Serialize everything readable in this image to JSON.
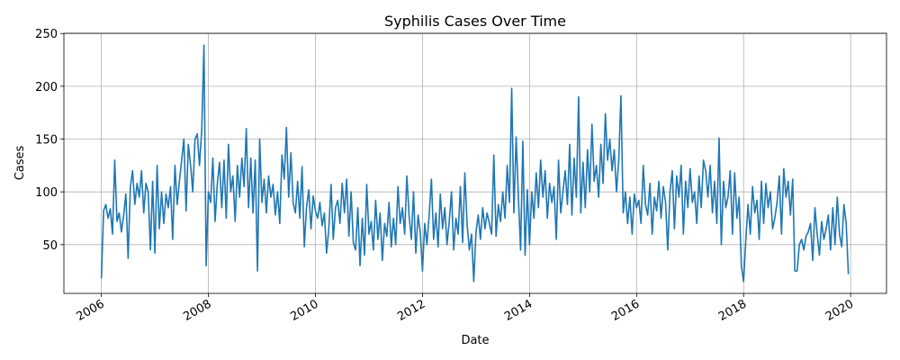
{
  "chart_data": {
    "type": "line",
    "title": "Syphilis Cases Over Time",
    "xlabel": "Date",
    "ylabel": "Cases",
    "xlim": [
      2005.3,
      2020.67
    ],
    "xticks": [
      2006,
      2008,
      2010,
      2012,
      2014,
      2016,
      2018,
      2020
    ],
    "ylim": [
      3.8,
      250.2
    ],
    "yticks": [
      50,
      100,
      150,
      200,
      250
    ],
    "grid": true,
    "x": [
      2006.0,
      2006.042,
      2006.083,
      2006.125,
      2006.167,
      2006.208,
      2006.25,
      2006.292,
      2006.333,
      2006.375,
      2006.417,
      2006.458,
      2006.5,
      2006.542,
      2006.583,
      2006.625,
      2006.667,
      2006.708,
      2006.75,
      2006.792,
      2006.833,
      2006.875,
      2006.917,
      2006.958,
      2007.0,
      2007.042,
      2007.083,
      2007.125,
      2007.167,
      2007.208,
      2007.25,
      2007.292,
      2007.333,
      2007.375,
      2007.417,
      2007.458,
      2007.5,
      2007.542,
      2007.583,
      2007.625,
      2007.667,
      2007.708,
      2007.75,
      2007.792,
      2007.833,
      2007.875,
      2007.917,
      2007.958,
      2008.0,
      2008.042,
      2008.083,
      2008.125,
      2008.167,
      2008.208,
      2008.25,
      2008.292,
      2008.333,
      2008.375,
      2008.417,
      2008.458,
      2008.5,
      2008.542,
      2008.583,
      2008.625,
      2008.667,
      2008.708,
      2008.75,
      2008.792,
      2008.833,
      2008.875,
      2008.917,
      2008.958,
      2009.0,
      2009.042,
      2009.083,
      2009.125,
      2009.167,
      2009.208,
      2009.25,
      2009.292,
      2009.333,
      2009.375,
      2009.417,
      2009.458,
      2009.5,
      2009.542,
      2009.583,
      2009.625,
      2009.667,
      2009.708,
      2009.75,
      2009.792,
      2009.833,
      2009.875,
      2009.917,
      2009.958,
      2010.0,
      2010.042,
      2010.083,
      2010.125,
      2010.167,
      2010.208,
      2010.25,
      2010.292,
      2010.333,
      2010.375,
      2010.417,
      2010.458,
      2010.5,
      2010.542,
      2010.583,
      2010.625,
      2010.667,
      2010.708,
      2010.75,
      2010.792,
      2010.833,
      2010.875,
      2010.917,
      2010.958,
      2011.0,
      2011.042,
      2011.083,
      2011.125,
      2011.167,
      2011.208,
      2011.25,
      2011.292,
      2011.333,
      2011.375,
      2011.417,
      2011.458,
      2011.5,
      2011.542,
      2011.583,
      2011.625,
      2011.667,
      2011.708,
      2011.75,
      2011.792,
      2011.833,
      2011.875,
      2011.917,
      2011.958,
      2012.0,
      2012.042,
      2012.083,
      2012.125,
      2012.167,
      2012.208,
      2012.25,
      2012.292,
      2012.333,
      2012.375,
      2012.417,
      2012.458,
      2012.5,
      2012.542,
      2012.583,
      2012.625,
      2012.667,
      2012.708,
      2012.75,
      2012.792,
      2012.833,
      2012.875,
      2012.917,
      2012.958,
      2013.0,
      2013.042,
      2013.083,
      2013.125,
      2013.167,
      2013.208,
      2013.25,
      2013.292,
      2013.333,
      2013.375,
      2013.417,
      2013.458,
      2013.5,
      2013.542,
      2013.583,
      2013.625,
      2013.667,
      2013.708,
      2013.75,
      2013.792,
      2013.833,
      2013.875,
      2013.917,
      2013.958,
      2014.0,
      2014.042,
      2014.083,
      2014.125,
      2014.167,
      2014.208,
      2014.25,
      2014.292,
      2014.333,
      2014.375,
      2014.417,
      2014.458,
      2014.5,
      2014.542,
      2014.583,
      2014.625,
      2014.667,
      2014.708,
      2014.75,
      2014.792,
      2014.833,
      2014.875,
      2014.917,
      2014.958,
      2015.0,
      2015.042,
      2015.083,
      2015.125,
      2015.167,
      2015.208,
      2015.25,
      2015.292,
      2015.333,
      2015.375,
      2015.417,
      2015.458,
      2015.5,
      2015.542,
      2015.583,
      2015.625,
      2015.667,
      2015.708,
      2015.75,
      2015.792,
      2015.833,
      2015.875,
      2015.917,
      2015.958,
      2016.0,
      2016.042,
      2016.083,
      2016.125,
      2016.167,
      2016.208,
      2016.25,
      2016.292,
      2016.333,
      2016.375,
      2016.417,
      2016.458,
      2016.5,
      2016.542,
      2016.583,
      2016.625,
      2016.667,
      2016.708,
      2016.75,
      2016.792,
      2016.833,
      2016.875,
      2016.917,
      2016.958,
      2017.0,
      2017.042,
      2017.083,
      2017.125,
      2017.167,
      2017.208,
      2017.25,
      2017.292,
      2017.333,
      2017.375,
      2017.417,
      2017.458,
      2017.5,
      2017.542,
      2017.583,
      2017.625,
      2017.667,
      2017.708,
      2017.75,
      2017.792,
      2017.833,
      2017.875,
      2017.917,
      2017.958,
      2018.0,
      2018.042,
      2018.083,
      2018.125,
      2018.167,
      2018.208,
      2018.25,
      2018.292,
      2018.333,
      2018.375,
      2018.417,
      2018.458,
      2018.5,
      2018.542,
      2018.583,
      2018.625,
      2018.667,
      2018.708,
      2018.75,
      2018.792,
      2018.833,
      2018.875,
      2018.917,
      2018.958,
      2019.0,
      2019.042,
      2019.083,
      2019.125,
      2019.167,
      2019.208,
      2019.25,
      2019.292,
      2019.333,
      2019.375,
      2019.417,
      2019.458,
      2019.5,
      2019.542,
      2019.583,
      2019.625,
      2019.667,
      2019.708,
      2019.75,
      2019.792,
      2019.833,
      2019.875,
      2019.917,
      2019.958
    ],
    "series": [
      {
        "color": "#1f77b4",
        "values": [
          18,
          82,
          88,
          75,
          84,
          60,
          130,
          72,
          80,
          62,
          78,
          98,
          37,
          105,
          120,
          88,
          108,
          95,
          120,
          80,
          108,
          100,
          45,
          110,
          42,
          125,
          65,
          100,
          70,
          98,
          85,
          105,
          55,
          125,
          88,
          110,
          130,
          150,
          82,
          145,
          125,
          100,
          150,
          155,
          125,
          158,
          239,
          30,
          100,
          90,
          132,
          72,
          108,
          128,
          85,
          130,
          75,
          145,
          100,
          115,
          72,
          125,
          95,
          132,
          105,
          160,
          85,
          132,
          80,
          130,
          25,
          150,
          90,
          112,
          80,
          115,
          95,
          107,
          78,
          100,
          70,
          135,
          112,
          161,
          95,
          137,
          90,
          80,
          110,
          75,
          124,
          48,
          85,
          102,
          65,
          96,
          82,
          75,
          90,
          68,
          80,
          42,
          65,
          107,
          55,
          85,
          92,
          70,
          108,
          80,
          112,
          58,
          100,
          52,
          45,
          85,
          30,
          75,
          40,
          107,
          60,
          72,
          45,
          92,
          55,
          80,
          35,
          70,
          58,
          90,
          48,
          75,
          50,
          105,
          70,
          85,
          60,
          115,
          78,
          55,
          100,
          42,
          78,
          62,
          25,
          70,
          50,
          78,
          112,
          55,
          80,
          48,
          98,
          65,
          85,
          50,
          72,
          100,
          45,
          75,
          60,
          105,
          52,
          118,
          70,
          45,
          60,
          15,
          62,
          78,
          55,
          85,
          65,
          80,
          70,
          60,
          135,
          58,
          88,
          72,
          100,
          75,
          125,
          90,
          198,
          80,
          152,
          95,
          45,
          148,
          40,
          102,
          50,
          100,
          75,
          118,
          85,
          130,
          95,
          120,
          75,
          108,
          90,
          105,
          55,
          130,
          80,
          100,
          120,
          88,
          145,
          78,
          132,
          95,
          190,
          80,
          128,
          85,
          140,
          100,
          164,
          110,
          125,
          95,
          145,
          108,
          174,
          130,
          150,
          120,
          140,
          100,
          130,
          191,
          80,
          100,
          70,
          95,
          60,
          98,
          85,
          92,
          70,
          125,
          88,
          78,
          108,
          60,
          95,
          82,
          110,
          75,
          105,
          90,
          45,
          100,
          120,
          65,
          115,
          95,
          125,
          60,
          110,
          85,
          122,
          90,
          100,
          70,
          115,
          85,
          130,
          120,
          95,
          125,
          80,
          110,
          70,
          151,
          50,
          110,
          85,
          95,
          120,
          60,
          118,
          75,
          95,
          30,
          15,
          55,
          88,
          60,
          105,
          80,
          92,
          55,
          110,
          70,
          108,
          85,
          100,
          65,
          75,
          90,
          115,
          60,
          122,
          95,
          110,
          78,
          112,
          25,
          25,
          50,
          55,
          45,
          58,
          62,
          70,
          35,
          85,
          60,
          40,
          72,
          55,
          65,
          78,
          45,
          85,
          50,
          95,
          60,
          48,
          88,
          70,
          22
        ]
      }
    ]
  }
}
